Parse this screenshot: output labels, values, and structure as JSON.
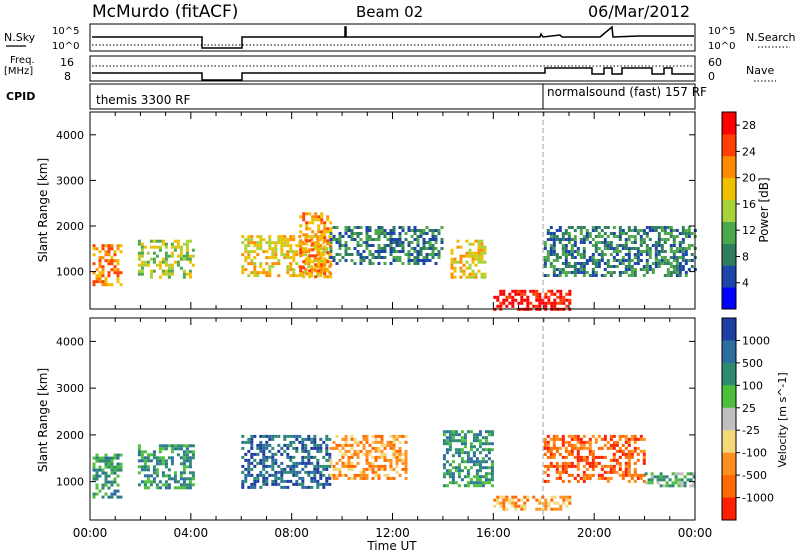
{
  "header": {
    "station": "McMurdo (fitACF)",
    "beam": "Beam 02",
    "date": "06/Mar/2012"
  },
  "strip_panels": {
    "nsky": {
      "label": "N.Sky",
      "right_label": "N.Search",
      "left_ticks": [
        "10^5",
        "10^0"
      ],
      "right_ticks": [
        "10^5",
        "10^0"
      ]
    },
    "freq": {
      "label_line1": "Freq.",
      "label_line2": "[MHz]",
      "right_label": "Nave",
      "left_ticks": [
        "16",
        "8"
      ],
      "right_ticks": [
        "60",
        "0"
      ]
    },
    "cpid": {
      "label": "CPID",
      "segments": [
        {
          "name": "themis 3300 RF",
          "start_hour": 0
        },
        {
          "name": "normalsound (fast) 157 RF",
          "start_hour": 18
        }
      ]
    }
  },
  "colors": {
    "power": [
      "#0000ff",
      "#1e46a8",
      "#2f7f5f",
      "#4da84d",
      "#a8d23c",
      "#f0c000",
      "#ff8c00",
      "#ff4000",
      "#ff0000"
    ],
    "velocity": [
      "#1e3fa0",
      "#2c6e9e",
      "#2e8b70",
      "#4cbf3c",
      "#c0c0c0",
      "#f5d87a",
      "#ff9020",
      "#ff6a00",
      "#ff2000"
    ]
  },
  "chart_data": [
    {
      "type": "heatmap",
      "name": "Power",
      "xlabel": "",
      "ylabel": "Slant Range [km]",
      "xlim": [
        0,
        24
      ],
      "ylim": [
        180,
        4500
      ],
      "yticks": [
        1000,
        2000,
        3000,
        4000
      ],
      "colorbar": {
        "label": "Power [dB]",
        "ticks": [
          "4",
          "8",
          "12",
          "16",
          "20",
          "24",
          "28"
        ],
        "range": [
          0,
          30
        ]
      },
      "echo_regions": [
        {
          "t0": 0.1,
          "t1": 1.2,
          "r0": 700,
          "r1": 1600,
          "level": 6
        },
        {
          "t0": 1.9,
          "t1": 4.1,
          "r0": 900,
          "r1": 1700,
          "level": 4
        },
        {
          "t0": 6.0,
          "t1": 9.5,
          "r0": 900,
          "r1": 1800,
          "level": 5
        },
        {
          "t0": 8.3,
          "t1": 9.5,
          "r0": 900,
          "r1": 2300,
          "level": 6
        },
        {
          "t0": 9.5,
          "t1": 14.0,
          "r0": 1200,
          "r1": 2000,
          "level": 2
        },
        {
          "t0": 14.3,
          "t1": 15.7,
          "r0": 900,
          "r1": 1700,
          "level": 5
        },
        {
          "t0": 16.0,
          "t1": 19.0,
          "r0": 200,
          "r1": 600,
          "level": 8
        },
        {
          "t0": 18.0,
          "t1": 24.0,
          "r0": 900,
          "r1": 2000,
          "level": 2
        }
      ]
    },
    {
      "type": "heatmap",
      "name": "Velocity",
      "xlabel": "Time UT",
      "ylabel": "Slant Range [km]",
      "xlim": [
        0,
        24
      ],
      "ylim": [
        180,
        4500
      ],
      "xticks": [
        "00:00",
        "04:00",
        "08:00",
        "12:00",
        "16:00",
        "20:00",
        "00:00"
      ],
      "yticks": [
        1000,
        2000,
        3000,
        4000
      ],
      "colorbar": {
        "label": "Velocity [m s^-1]",
        "ticks": [
          "1000",
          "500",
          "100",
          "25",
          "-25",
          "-100",
          "-500",
          "-1000"
        ]
      },
      "echo_regions": [
        {
          "t0": 0.1,
          "t1": 1.2,
          "r0": 700,
          "r1": 1600,
          "level": 2
        },
        {
          "t0": 1.9,
          "t1": 4.1,
          "r0": 900,
          "r1": 1800,
          "level": 2
        },
        {
          "t0": 6.0,
          "t1": 9.5,
          "r0": 900,
          "r1": 2000,
          "level": 1
        },
        {
          "t0": 9.5,
          "t1": 12.5,
          "r0": 1100,
          "r1": 2000,
          "level": 6
        },
        {
          "t0": 14.0,
          "t1": 16.0,
          "r0": 900,
          "r1": 2100,
          "level": 2
        },
        {
          "t0": 16.0,
          "t1": 19.0,
          "r0": 400,
          "r1": 700,
          "level": 6
        },
        {
          "t0": 18.0,
          "t1": 22.0,
          "r0": 1000,
          "r1": 2000,
          "level": 7
        },
        {
          "t0": 22.0,
          "t1": 24.0,
          "r0": 900,
          "r1": 1200,
          "level": 3
        }
      ]
    }
  ]
}
